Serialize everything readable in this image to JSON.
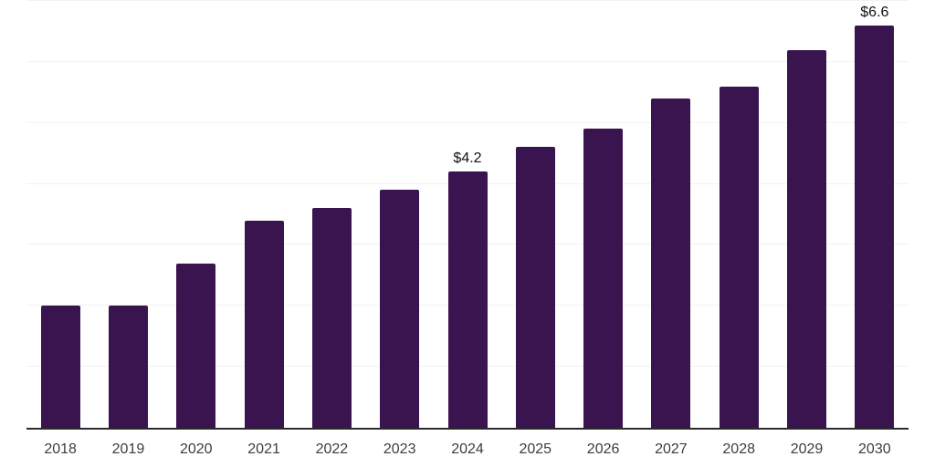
{
  "chart_data": {
    "type": "bar",
    "title": "",
    "xlabel": "",
    "ylabel": "",
    "categories": [
      "2018",
      "2019",
      "2020",
      "2021",
      "2022",
      "2023",
      "2024",
      "2025",
      "2026",
      "2027",
      "2028",
      "2029",
      "2030"
    ],
    "values": [
      2.0,
      2.0,
      2.7,
      3.4,
      3.6,
      3.9,
      4.2,
      4.6,
      4.9,
      5.4,
      5.6,
      6.2,
      6.6
    ],
    "annotations": [
      {
        "category": "2024",
        "text": "$4.2"
      },
      {
        "category": "2030",
        "text": "$6.6"
      }
    ],
    "ylim": [
      0,
      7
    ],
    "grid": "horizontal",
    "legend": "none",
    "colors": {
      "bar": "#3A144F",
      "gridline": "#F2F2F2",
      "axis_line": "#2B2B2B",
      "tick_label": "#3D3D3D",
      "data_label": "#111111"
    }
  }
}
